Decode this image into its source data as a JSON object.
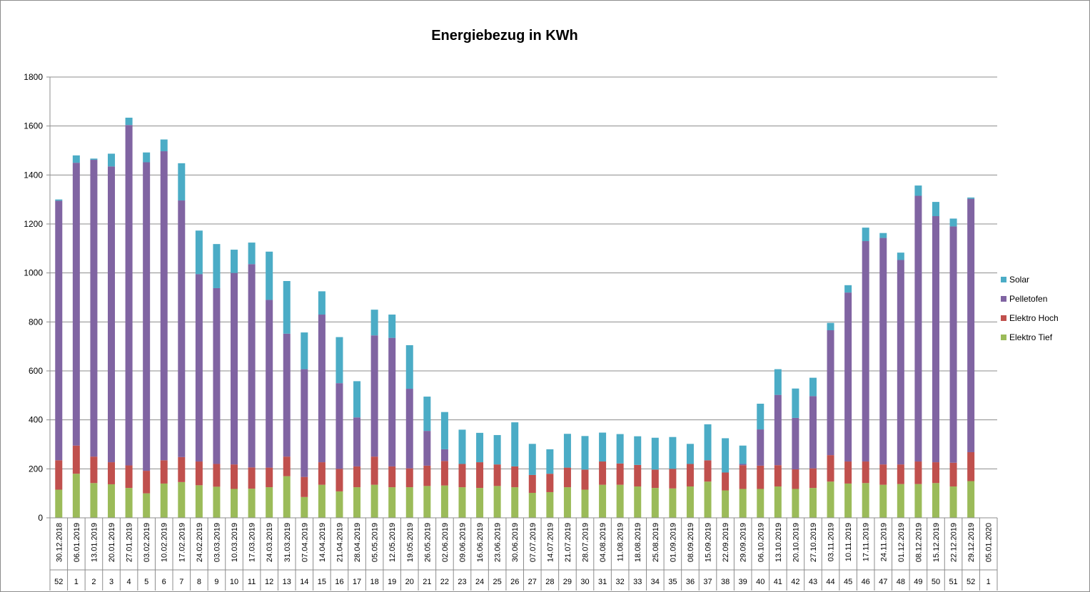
{
  "chart_data": {
    "type": "bar",
    "stacked": true,
    "title": "Energiebezug in KWh",
    "xlabel": "",
    "ylabel": "",
    "ylim": [
      0,
      1800
    ],
    "yticks": [
      0,
      200,
      400,
      600,
      800,
      1000,
      1200,
      1400,
      1600,
      1800
    ],
    "grid": true,
    "legend_position": "right",
    "categories": [
      "30.12.2018",
      "06.01.2019",
      "13.01.2019",
      "20.01.2019",
      "27.01.2019",
      "03.02.2019",
      "10.02.2019",
      "17.02.2019",
      "24.02.2019",
      "03.03.2019",
      "10.03.2019",
      "17.03.2019",
      "24.03.2019",
      "31.03.2019",
      "07.04.2019",
      "14.04.2019",
      "21.04.2019",
      "28.04.2019",
      "05.05.2019",
      "12.05.2019",
      "19.05.2019",
      "26.05.2019",
      "02.06.2019",
      "09.06.2019",
      "16.06.2019",
      "23.06.2019",
      "30.06.2019",
      "07.07.2019",
      "14.07.2019",
      "21.07.2019",
      "28.07.2019",
      "04.08.2019",
      "11.08.2019",
      "18.08.2019",
      "25.08.2019",
      "01.09.2019",
      "08.09.2019",
      "15.09.2019",
      "22.09.2019",
      "29.09.2019",
      "06.10.2019",
      "13.10.2019",
      "20.10.2019",
      "27.10.2019",
      "03.11.2019",
      "10.11.2019",
      "17.11.2019",
      "24.11.2019",
      "01.12.2019",
      "08.12.2019",
      "15.12.2019",
      "22.12.2019",
      "29.12.2019",
      "05.01.2020"
    ],
    "weeks": [
      "52",
      "1",
      "2",
      "3",
      "4",
      "5",
      "6",
      "7",
      "8",
      "9",
      "10",
      "11",
      "12",
      "13",
      "14",
      "15",
      "16",
      "17",
      "18",
      "19",
      "20",
      "21",
      "22",
      "23",
      "24",
      "25",
      "26",
      "27",
      "28",
      "29",
      "30",
      "31",
      "32",
      "33",
      "34",
      "35",
      "36",
      "37",
      "38",
      "39",
      "40",
      "41",
      "42",
      "43",
      "44",
      "45",
      "46",
      "47",
      "48",
      "49",
      "50",
      "51",
      "52",
      "1"
    ],
    "series": [
      {
        "name": "Elektro Tief",
        "color": "#9bbb59",
        "values": [
          115,
          180,
          142,
          137,
          122,
          100,
          140,
          146,
          133,
          127,
          118,
          119,
          125,
          170,
          85,
          135,
          108,
          125,
          135,
          125,
          125,
          130,
          132,
          125,
          122,
          130,
          125,
          102,
          105,
          125,
          115,
          135,
          135,
          128,
          122,
          120,
          128,
          148,
          112,
          118,
          118,
          128,
          118,
          122,
          148,
          140,
          142,
          135,
          138,
          138,
          142,
          128,
          150,
          0
        ]
      },
      {
        "name": "Elektro Hoch",
        "color": "#c0504d",
        "values": [
          120,
          115,
          108,
          90,
          92,
          92,
          95,
          102,
          97,
          93,
          100,
          87,
          80,
          80,
          82,
          92,
          92,
          85,
          115,
          85,
          77,
          83,
          100,
          95,
          105,
          88,
          85,
          73,
          75,
          80,
          82,
          95,
          87,
          88,
          75,
          80,
          92,
          87,
          73,
          97,
          95,
          87,
          80,
          80,
          108,
          90,
          88,
          83,
          80,
          92,
          85,
          97,
          118,
          0
        ]
      },
      {
        "name": "Pelletofen",
        "color": "#8064a2",
        "values": [
          1060,
          1155,
          1212,
          1208,
          1390,
          1260,
          1262,
          1048,
          765,
          718,
          782,
          830,
          685,
          502,
          440,
          603,
          350,
          200,
          495,
          525,
          325,
          142,
          48,
          0,
          0,
          0,
          0,
          0,
          0,
          0,
          0,
          0,
          0,
          0,
          0,
          0,
          0,
          0,
          0,
          5,
          148,
          287,
          210,
          295,
          510,
          690,
          900,
          925,
          835,
          1085,
          1005,
          965,
          1035,
          0
        ]
      },
      {
        "name": "Solar",
        "color": "#4bacc6",
        "values": [
          5,
          30,
          5,
          52,
          30,
          40,
          48,
          152,
          178,
          180,
          95,
          88,
          197,
          215,
          150,
          95,
          188,
          148,
          105,
          95,
          178,
          140,
          152,
          140,
          120,
          120,
          180,
          127,
          100,
          138,
          137,
          118,
          120,
          117,
          130,
          130,
          82,
          147,
          140,
          75,
          105,
          105,
          120,
          75,
          30,
          30,
          55,
          20,
          30,
          42,
          58,
          32,
          5,
          0
        ]
      }
    ]
  }
}
